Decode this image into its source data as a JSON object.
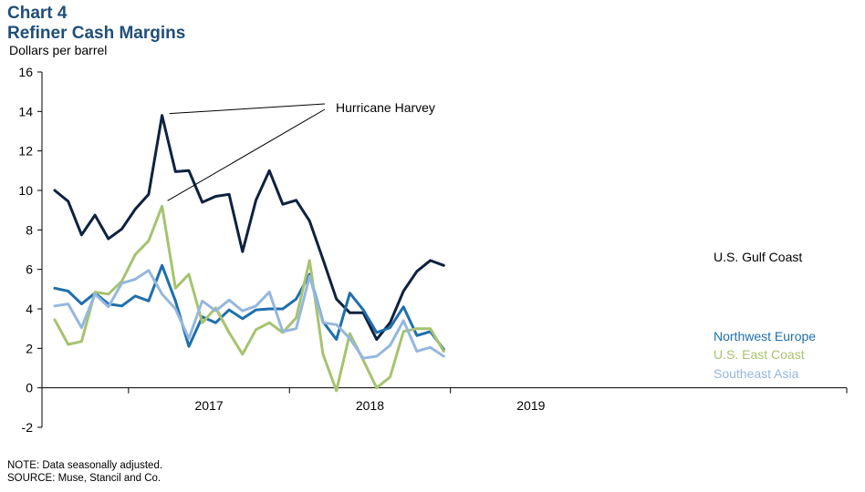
{
  "header": {
    "chart_number": "Chart 4",
    "title": "Refiner Cash Margins"
  },
  "footer": {
    "note": "NOTE: Data seasonally adjusted.",
    "source": "SOURCE: Muse, Stancil and Co."
  },
  "chart_data": {
    "type": "line",
    "title": "Refiner Cash Margins",
    "ylabel": "Dollars per barrel",
    "xlabel": "",
    "ylim": [
      -2,
      16
    ],
    "yticks": [
      -2,
      0,
      2,
      4,
      6,
      8,
      10,
      12,
      14,
      16
    ],
    "x_labels": [
      "2017",
      "2018",
      "2019"
    ],
    "x": [
      "2016-07",
      "2016-08",
      "2016-09",
      "2016-10",
      "2016-11",
      "2016-12",
      "2017-01",
      "2017-02",
      "2017-03",
      "2017-04",
      "2017-05",
      "2017-06",
      "2017-07",
      "2017-08",
      "2017-09",
      "2017-10",
      "2017-11",
      "2017-12",
      "2018-01",
      "2018-02",
      "2018-03",
      "2018-04",
      "2018-05",
      "2018-06",
      "2018-07",
      "2018-08",
      "2018-09",
      "2018-10",
      "2018-11",
      "2018-12",
      "2019-01"
    ],
    "grid": false,
    "series": [
      {
        "name": "U.S. Gulf Coast",
        "color": "#0d2240",
        "values": [
          10.0,
          9.45,
          7.75,
          8.75,
          7.55,
          8.05,
          9.05,
          9.8,
          13.8,
          10.95,
          11.0,
          9.4,
          9.7,
          9.8,
          6.9,
          9.5,
          11.0,
          9.3,
          9.5,
          8.45,
          6.5,
          4.5,
          3.8,
          3.8,
          2.45,
          3.3,
          4.9,
          5.9,
          6.45,
          6.2,
          null
        ]
      },
      {
        "name": "Northwest Europe",
        "color": "#1f6fad",
        "values": [
          5.05,
          4.9,
          4.25,
          4.8,
          4.25,
          4.15,
          4.65,
          4.4,
          6.2,
          4.4,
          2.1,
          3.6,
          3.3,
          3.95,
          3.5,
          3.95,
          4.0,
          4.0,
          4.5,
          5.75,
          3.35,
          2.45,
          4.8,
          3.95,
          2.8,
          3.05,
          4.1,
          2.65,
          2.85,
          1.95,
          null
        ]
      },
      {
        "name": "U.S. East Coast",
        "color": "#a6c36f",
        "values": [
          3.45,
          2.2,
          2.35,
          4.85,
          4.75,
          5.4,
          6.75,
          7.45,
          9.2,
          5.05,
          5.75,
          3.3,
          4.05,
          2.8,
          1.7,
          2.95,
          3.3,
          2.8,
          3.55,
          6.45,
          1.7,
          -0.15,
          2.75,
          1.4,
          0.0,
          0.55,
          2.85,
          3.0,
          3.0,
          1.85,
          null
        ]
      },
      {
        "name": "Southeast Asia",
        "color": "#95b7df",
        "values": [
          4.15,
          4.25,
          3.05,
          4.75,
          4.1,
          5.3,
          5.5,
          5.95,
          4.75,
          4.0,
          2.5,
          4.4,
          3.9,
          4.45,
          3.9,
          4.15,
          4.85,
          2.85,
          3.0,
          5.65,
          3.3,
          3.2,
          2.5,
          1.5,
          1.6,
          2.15,
          3.4,
          1.85,
          2.05,
          1.6,
          null
        ]
      }
    ],
    "annotations": [
      {
        "text": "Hurricane Harvey",
        "target_date": "2017-03"
      }
    ],
    "legend_placement": "right-inline"
  }
}
